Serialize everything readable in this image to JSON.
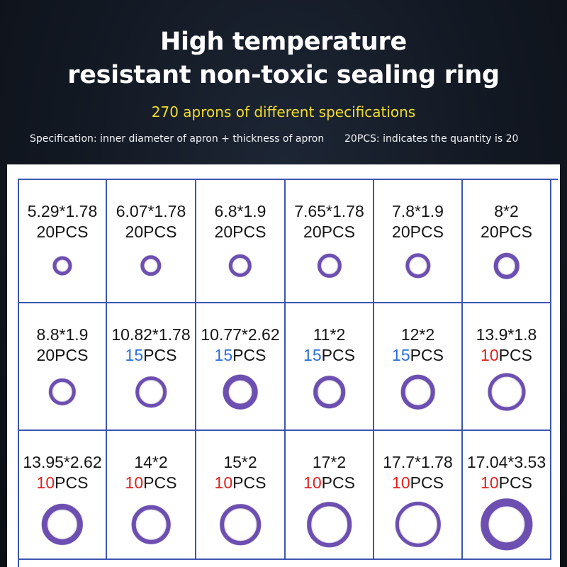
{
  "header": {
    "title_line1": "High temperature",
    "title_line2": "resistant non-toxic sealing ring",
    "subtitle": "270 aprons of different specifications",
    "note_left": "Specification: inner diameter of apron + thickness of apron",
    "note_right": "20PCS: indicates the quantity is 20"
  },
  "colors": {
    "qty_20": "#141414",
    "qty_15": "#2a6fd6",
    "qty_10": "#e02020",
    "ring": "#6d4fb2",
    "grid_line": "#3c56b0",
    "subtitle": "#f0dc2a"
  },
  "rings": [
    {
      "spec": "5.29*1.78",
      "count": "20",
      "unit": "PCS"
    },
    {
      "spec": "6.07*1.78",
      "count": "20",
      "unit": "PCS"
    },
    {
      "spec": "6.8*1.9",
      "count": "20",
      "unit": "PCS"
    },
    {
      "spec": "7.65*1.78",
      "count": "20",
      "unit": "PCS"
    },
    {
      "spec": "7.8*1.9",
      "count": "20",
      "unit": "PCS"
    },
    {
      "spec": "8*2",
      "count": "20",
      "unit": "PCS"
    },
    {
      "spec": "8.8*1.9",
      "count": "20",
      "unit": "PCS"
    },
    {
      "spec": "10.82*1.78",
      "count": "15",
      "unit": "PCS"
    },
    {
      "spec": "10.77*2.62",
      "count": "15",
      "unit": "PCS"
    },
    {
      "spec": "11*2",
      "count": "15",
      "unit": "PCS"
    },
    {
      "spec": "12*2",
      "count": "15",
      "unit": "PCS"
    },
    {
      "spec": "13.9*1.8",
      "count": "10",
      "unit": "PCS"
    },
    {
      "spec": "13.95*2.62",
      "count": "10",
      "unit": "PCS"
    },
    {
      "spec": "14*2",
      "count": "10",
      "unit": "PCS"
    },
    {
      "spec": "15*2",
      "count": "10",
      "unit": "PCS"
    },
    {
      "spec": "17*2",
      "count": "10",
      "unit": "PCS"
    },
    {
      "spec": "17.7*1.78",
      "count": "10",
      "unit": "PCS"
    },
    {
      "spec": "17.04*3.53",
      "count": "10",
      "unit": "PCS"
    }
  ]
}
